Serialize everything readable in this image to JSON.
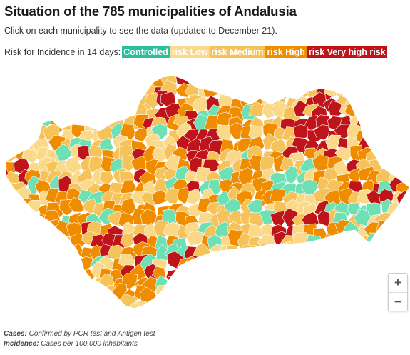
{
  "title": "Situation of the 785 municipalities of Andalusia",
  "subtitle": "Click on each municipality to see the data (updated to December 21).",
  "legend": {
    "label": "Risk for Incidence in 14 days:",
    "items": [
      {
        "label": "Controlled",
        "color": "#2bbf9c"
      },
      {
        "label": "risk Low",
        "color": "#fbd98a"
      },
      {
        "label": "risk Medium",
        "color": "#f6c25a"
      },
      {
        "label": "risk High",
        "color": "#f08c00"
      },
      {
        "label": "risk Very high risk",
        "color": "#c0141b"
      }
    ]
  },
  "map": {
    "colors": {
      "controlled": "#6ee0b4",
      "low": "#fbd98a",
      "medium": "#f6c25a",
      "high": "#f08c00",
      "very_high": "#c0141b",
      "border": "#ffffff"
    }
  },
  "zoom": {
    "in": "+",
    "out": "−"
  },
  "notes": [
    {
      "term": "Cases:",
      "text": " Confirmed by PCR test and Antigen test"
    },
    {
      "term": "Incidence:",
      "text": " Cases per 100,000 inhabitants"
    }
  ]
}
